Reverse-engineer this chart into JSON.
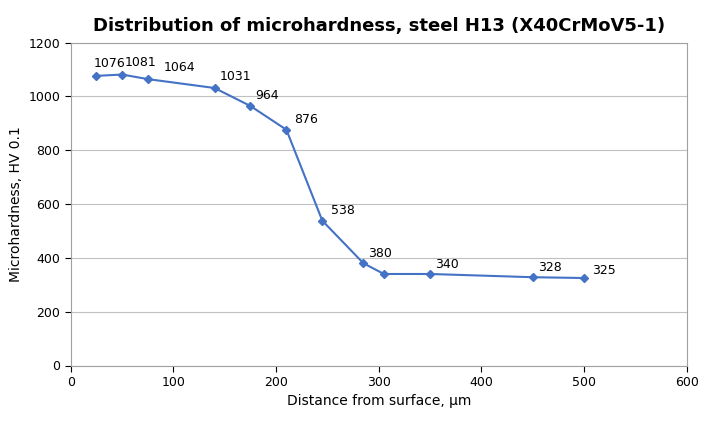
{
  "title": "Distribution of microhardness, steel H13 (X40CrMoV5-1)",
  "xlabel": "Distance from surface, μm",
  "ylabel": "Microhardness, HV 0.1",
  "x": [
    25,
    50,
    75,
    140,
    175,
    210,
    245,
    285,
    305,
    350,
    450,
    500
  ],
  "y": [
    1076,
    1081,
    1064,
    1031,
    964,
    876,
    538,
    380,
    340,
    340,
    328,
    325
  ],
  "labels": [
    "1076",
    "1081",
    "1064",
    "1031",
    "964",
    "876",
    "538",
    "380",
    "340",
    "328",
    "325"
  ],
  "label_x_indices": [
    0,
    1,
    2,
    3,
    4,
    5,
    6,
    7,
    9,
    10,
    11
  ],
  "label_offsets_data": [
    [
      -3,
      22
    ],
    [
      2,
      22
    ],
    [
      15,
      18
    ],
    [
      5,
      18
    ],
    [
      5,
      15
    ],
    [
      8,
      15
    ],
    [
      8,
      12
    ],
    [
      5,
      12
    ],
    [
      5,
      12
    ],
    [
      5,
      12
    ],
    [
      8,
      5
    ]
  ],
  "xlim": [
    0,
    600
  ],
  "ylim": [
    0,
    1200
  ],
  "xticks": [
    0,
    100,
    200,
    300,
    400,
    500,
    600
  ],
  "yticks": [
    0,
    200,
    400,
    600,
    800,
    1000,
    1200
  ],
  "line_color": "#4472C4",
  "marker_color": "#4472C4",
  "marker": "D",
  "marker_size": 4,
  "line_width": 1.5,
  "font_size_title": 13,
  "font_size_labels": 10,
  "font_size_ticks": 9,
  "font_size_annotations": 9,
  "background_color": "#FFFFFF",
  "grid_color": "#C0C0C0",
  "spine_color": "#A0A0A0"
}
